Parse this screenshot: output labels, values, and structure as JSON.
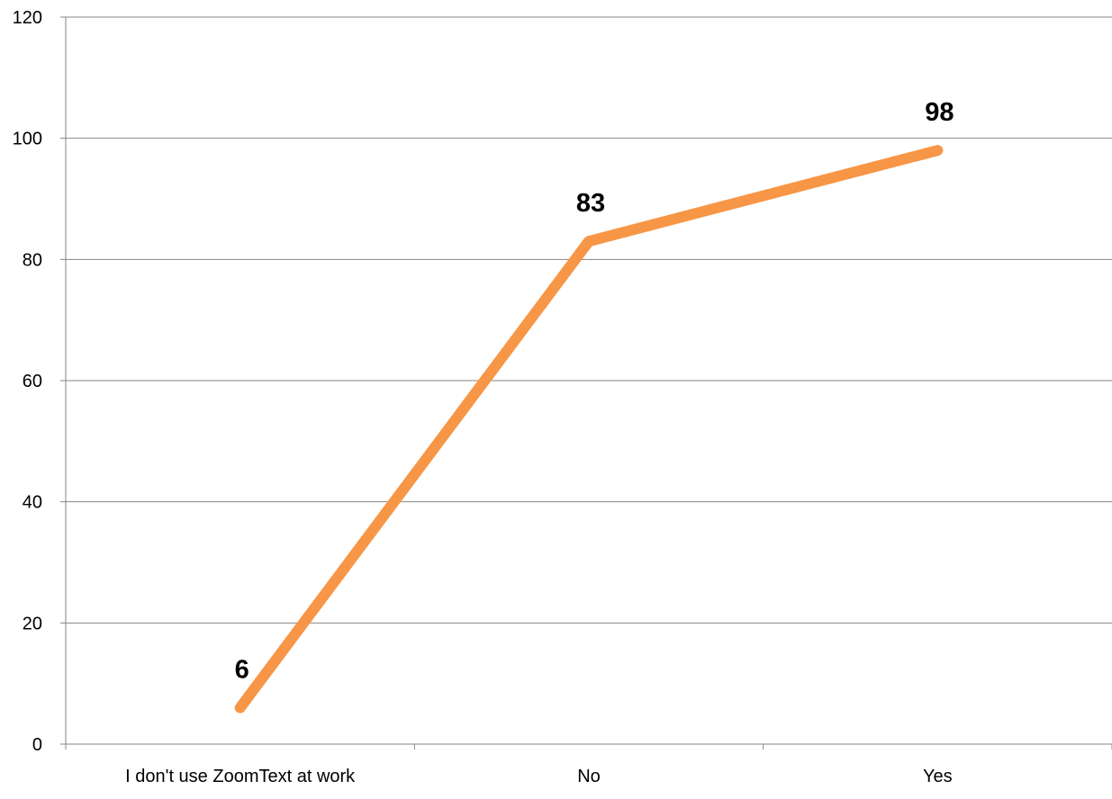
{
  "chart_data": {
    "type": "line",
    "title": "",
    "xlabel": "",
    "ylabel": "",
    "categories": [
      "I don't use ZoomText at work",
      "No",
      "Yes"
    ],
    "series": [
      {
        "values": [
          6,
          83,
          98
        ],
        "color": "#F79646"
      }
    ],
    "ylim": [
      0,
      120
    ],
    "yticks": [
      0,
      20,
      40,
      60,
      80,
      100,
      120
    ],
    "grid": true,
    "legend": "none",
    "data_labels": [
      "6",
      "83",
      "98"
    ]
  }
}
